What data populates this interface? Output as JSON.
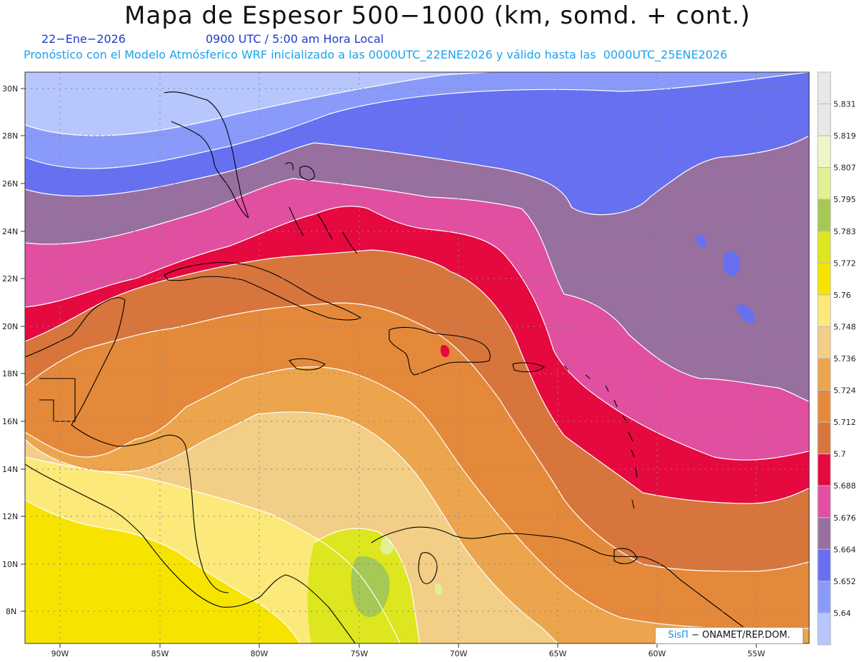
{
  "header": {
    "title": "Mapa de Espesor 500−1000 (km, somd. + cont.)",
    "date": "22−Ene−2026",
    "time": "0900 UTC / 5:00 am Hora Local",
    "forecast": "Pronóstico con el Modelo Atmósferico WRF inicializado a las 0000UTC_22ENE2026 y válido hasta las  0000UTC_25ENE2026"
  },
  "map": {
    "lat_labels": [
      "30N",
      "28N",
      "26N",
      "24N",
      "22N",
      "20N",
      "18N",
      "16N",
      "14N",
      "12N",
      "10N",
      "8N"
    ],
    "lon_labels": [
      "90W",
      "85W",
      "80W",
      "75W",
      "70W",
      "65W",
      "60W",
      "55W"
    ]
  },
  "legend": {
    "labels": [
      "5.831",
      "5.819",
      "5.807",
      "5.795",
      "5.783",
      "5.772",
      "5.76",
      "5.748",
      "5.736",
      "5.724",
      "5.712",
      "5.7",
      "5.688",
      "5.676",
      "5.664",
      "5.652",
      "5.64"
    ],
    "colors": [
      "#e8e8e8",
      "#eef6c8",
      "#e2f094",
      "#a6c855",
      "#dde61e",
      "#f6e400",
      "#fce97a",
      "#f2ce86",
      "#eca54c",
      "#e4893a",
      "#d8753c",
      "#e5093f",
      "#e04fa0",
      "#97709f",
      "#6670f0",
      "#8a9afa",
      "#b7c6fc"
    ]
  },
  "credit": {
    "brand": "SisΠ",
    "org": "− ONAMET/REP.DOM."
  }
}
